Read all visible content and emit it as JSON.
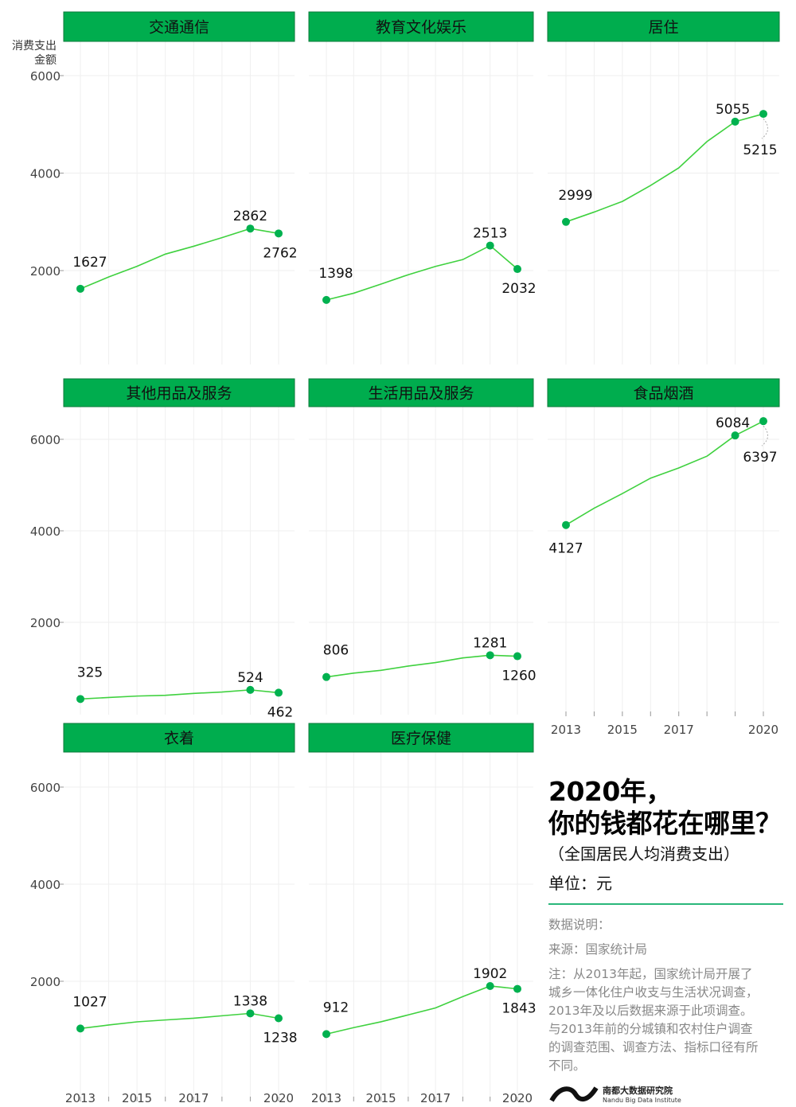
{
  "chart_data": {
    "type": "line",
    "layout": "small-multiples",
    "x": [
      2013,
      2014,
      2015,
      2016,
      2017,
      2018,
      2019,
      2020
    ],
    "x_tick_labels": [
      "2013",
      "2015",
      "2017",
      "2020"
    ],
    "y_ticks": [
      2000,
      4000,
      6000
    ],
    "y_tick_labels": [
      "2000",
      "4000",
      "6000"
    ],
    "ylabel": "消费支出\n金额",
    "ylabel_lines": [
      "消费支出",
      "金额"
    ],
    "ylim": [
      0,
      6600
    ],
    "grid": true,
    "panels": [
      {
        "name": "交通通信",
        "values": [
          1627,
          1869,
          2087,
          2338,
          2499,
          2675,
          2862,
          2762
        ]
      },
      {
        "name": "教育文化娱乐",
        "values": [
          1398,
          1536,
          1723,
          1915,
          2086,
          2226,
          2513,
          2032
        ]
      },
      {
        "name": "居住",
        "values": [
          2999,
          3201,
          3419,
          3746,
          4107,
          4647,
          5055,
          5215
        ]
      },
      {
        "name": "其他用品及服务",
        "values": [
          325,
          358,
          389,
          406,
          447,
          477,
          524,
          462
        ]
      },
      {
        "name": "生活用品及服务",
        "values": [
          806,
          890,
          951,
          1044,
          1121,
          1223,
          1281,
          1260
        ]
      },
      {
        "name": "食品烟酒",
        "values": [
          4127,
          4494,
          4814,
          5151,
          5374,
          5631,
          6084,
          6397
        ]
      },
      {
        "name": "衣着",
        "values": [
          1027,
          1099,
          1164,
          1203,
          1238,
          1289,
          1338,
          1238
        ]
      },
      {
        "name": "医疗保健",
        "values": [
          912,
          1045,
          1165,
          1307,
          1451,
          1685,
          1902,
          1843
        ]
      }
    ],
    "labeled_points_years": [
      2013,
      2019,
      2020
    ],
    "colors": {
      "strip": "#00ad4e",
      "line": "#3fd13f",
      "point": "#00b14f",
      "grid": "#efefef"
    }
  },
  "info": {
    "title_line1": "2020年，",
    "title_line2": "你的钱都花在哪里？",
    "subtitle": "（全国居民人均消费支出）",
    "unit": "单位：元",
    "data_note_heading": "数据说明：",
    "source": "来源：国家统计局",
    "note": "注：从2013年起，国家统计局开展了城乡一体化住户收支与生活状况调查，2013年及以后数据来源于此项调查。与2013年前的分城镇和农村住户调查的调查范围、调查方法、指标口径有所不同。",
    "logo_cn": "南都大数据研究院",
    "logo_en": "Nandu Big Data Institute"
  }
}
